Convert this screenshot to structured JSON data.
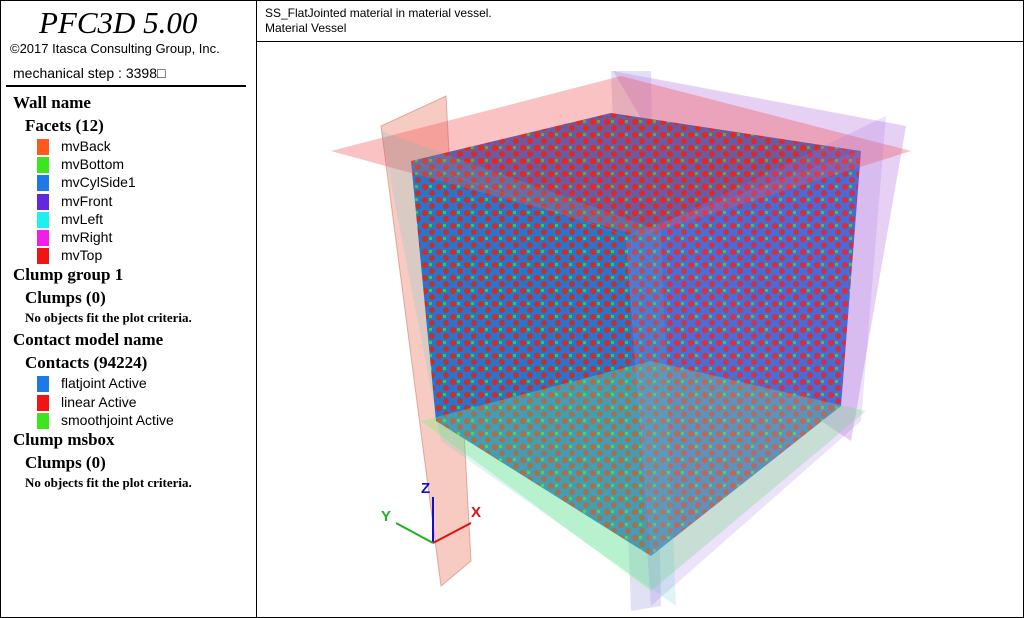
{
  "header": {
    "title": "PFC3D 5.00",
    "copyright": "©2017 Itasca Consulting Group, Inc.",
    "step": "mechanical step : 3398□"
  },
  "legend": {
    "sections": [
      {
        "name": "Wall name",
        "groups": [
          {
            "label": "Facets (12)",
            "items": [
              {
                "label": "mvBack",
                "color": "#ff5a1e"
              },
              {
                "label": "mvBottom",
                "color": "#3ce61e"
              },
              {
                "label": "mvCylSide1",
                "color": "#1e78e6"
              },
              {
                "label": "mvFront",
                "color": "#6428dc"
              },
              {
                "label": "mvLeft",
                "color": "#1ef0f0"
              },
              {
                "label": "mvRight",
                "color": "#f01ee6"
              },
              {
                "label": "mvTop",
                "color": "#f01414"
              }
            ]
          }
        ]
      },
      {
        "name": "Clump group 1",
        "groups": [
          {
            "label": "Clumps (0)",
            "note": "No objects fit the plot criteria."
          }
        ]
      },
      {
        "name": "Contact model name",
        "groups": [
          {
            "label": "Contacts (94224)",
            "items": [
              {
                "label": "flatjoint Active",
                "color": "#1e78e6"
              },
              {
                "label": "linear Active",
                "color": "#f01414"
              },
              {
                "label": "smoothjoint Active",
                "color": "#3ce61e"
              }
            ]
          }
        ]
      },
      {
        "name": "Clump msbox",
        "groups": [
          {
            "label": "Clumps (0)",
            "note": "No objects fit the plot criteria."
          }
        ]
      }
    ]
  },
  "view": {
    "title_lines": [
      "SS_FlatJointed material in material vessel.",
      "Material Vessel"
    ],
    "axes": {
      "x": "X",
      "y": "Y",
      "z": "Z"
    }
  }
}
